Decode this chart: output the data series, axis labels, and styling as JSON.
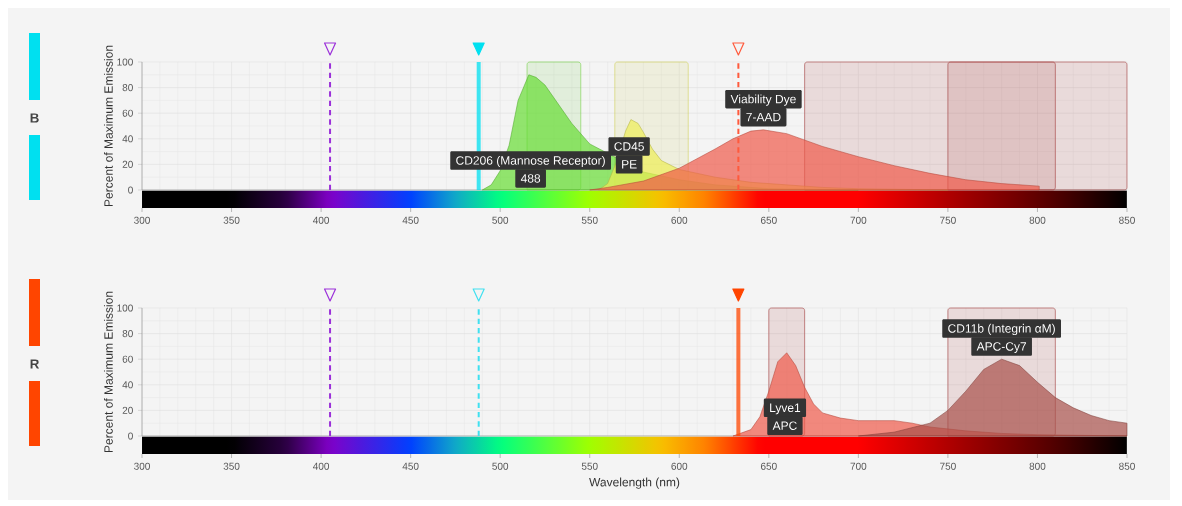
{
  "chart_data": [
    {
      "type": "area",
      "ylabel": "Percent of Maximum Emission",
      "xlim": [
        300,
        850
      ],
      "ylim": [
        0,
        100
      ],
      "xticks": [
        300,
        350,
        400,
        450,
        500,
        550,
        600,
        650,
        700,
        750,
        800,
        850
      ],
      "yticks": [
        0,
        20,
        40,
        60,
        80,
        100
      ],
      "grid": true,
      "bands": [
        {
          "axis": "x",
          "from": 515,
          "to": 545,
          "color": "#66cc33"
        },
        {
          "axis": "x",
          "from": 564,
          "to": 605,
          "color": "#cccc44"
        },
        {
          "axis": "x",
          "from": 670,
          "to": 850,
          "color": "#a03030"
        },
        {
          "axis": "x",
          "from": 750,
          "to": 810,
          "color": "#a03030"
        }
      ],
      "series": [
        {
          "color": "#66dd33",
          "x": [
            490,
            495,
            500,
            505,
            510,
            516,
            520,
            525,
            530,
            540,
            550,
            580,
            600,
            620,
            650,
            700
          ],
          "values": [
            0,
            4,
            15,
            35,
            70,
            90,
            88,
            82,
            72,
            52,
            36,
            14,
            8,
            4,
            1,
            0
          ]
        },
        {
          "color": "#eeee55",
          "x": [
            555,
            560,
            565,
            570,
            573,
            577,
            580,
            585,
            590,
            600,
            620,
            640,
            660,
            680,
            700,
            750
          ],
          "values": [
            0,
            5,
            22,
            46,
            55,
            52,
            45,
            32,
            23,
            16,
            10,
            6,
            4,
            2,
            1,
            0
          ]
        },
        {
          "color": "#f05a4a",
          "x": [
            550,
            560,
            580,
            600,
            620,
            630,
            640,
            647,
            660,
            680,
            700,
            720,
            740,
            760,
            780,
            801
          ],
          "values": [
            0,
            2,
            7,
            17,
            32,
            40,
            46,
            47,
            44,
            34,
            26,
            19,
            13,
            8,
            5,
            3
          ]
        }
      ],
      "ref_lines": [
        {
          "axis": "x",
          "value": 405,
          "color": "#9b30d9",
          "line_style": "dashed"
        },
        {
          "axis": "x",
          "value": 488,
          "color": "#00e0f0",
          "line_style": "solid"
        },
        {
          "axis": "x",
          "value": 633,
          "color": "#ff5a3c",
          "line_style": "dashed"
        }
      ],
      "annotations": [
        "B",
        {
          "text": "CD206 (Mannose Receptor)",
          "x": 517,
          "y": 23
        },
        {
          "text": "488",
          "x": 517,
          "y": 9
        },
        {
          "text": "CD45",
          "x": 572,
          "y": 34
        },
        {
          "text": "PE",
          "x": 572,
          "y": 20
        },
        {
          "text": "Viability Dye",
          "x": 647,
          "y": 47
        },
        {
          "text": "7-AAD",
          "x": 647,
          "y": 47
        }
      ]
    },
    {
      "type": "area",
      "xlabel": "Wavelength (nm)",
      "ylabel": "Percent of Maximum Emission",
      "xlim": [
        300,
        850
      ],
      "ylim": [
        0,
        100
      ],
      "xticks": [
        300,
        350,
        400,
        450,
        500,
        550,
        600,
        650,
        700,
        750,
        800,
        850
      ],
      "yticks": [
        0,
        20,
        40,
        60,
        80,
        100
      ],
      "grid": true,
      "bands": [
        {
          "axis": "x",
          "from": 650,
          "to": 670,
          "color": "#a03030"
        },
        {
          "axis": "x",
          "from": 750,
          "to": 810,
          "color": "#a03030"
        }
      ],
      "series": [
        {
          "color": "#f05a4a",
          "x": [
            630,
            640,
            645,
            650,
            655,
            660,
            665,
            670,
            675,
            680,
            690,
            700,
            720,
            730,
            740,
            760,
            780,
            800,
            850
          ],
          "values": [
            0,
            5,
            15,
            35,
            58,
            65,
            55,
            38,
            25,
            18,
            14,
            12,
            12,
            10,
            7,
            4,
            2,
            1,
            0
          ]
        },
        {
          "color": "#a8504a",
          "x": [
            700,
            720,
            740,
            750,
            760,
            770,
            780,
            790,
            800,
            810,
            820,
            830,
            840,
            850
          ],
          "values": [
            0,
            3,
            10,
            20,
            35,
            52,
            60,
            55,
            42,
            30,
            22,
            16,
            12,
            10
          ]
        }
      ],
      "ref_lines": [
        {
          "axis": "x",
          "value": 405,
          "color": "#9b30d9",
          "line_style": "dashed"
        },
        {
          "axis": "x",
          "value": 488,
          "color": "#40e0f0",
          "line_style": "dashed"
        },
        {
          "axis": "x",
          "value": 633,
          "color": "#ff4500",
          "line_style": "solid"
        }
      ],
      "annotations": [
        "R",
        {
          "text": "Lyve1",
          "x": 659,
          "y": 22
        },
        {
          "text": "APC",
          "x": 659,
          "y": 8
        },
        {
          "text": "CD11b (Integrin αM)",
          "x": 780,
          "y": 60
        },
        {
          "text": "APC-Cy7",
          "x": 780,
          "y": 60
        }
      ]
    }
  ]
}
